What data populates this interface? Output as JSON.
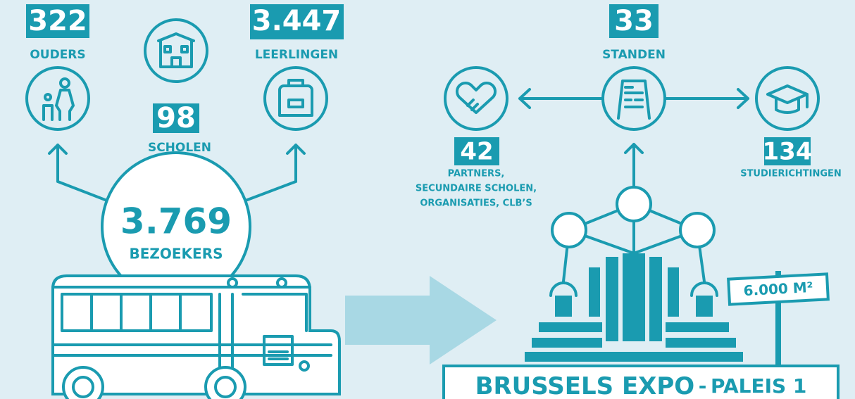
{
  "visitors": {
    "parents": {
      "number": "322",
      "label": "OUDERS"
    },
    "schools": {
      "number": "98",
      "label": "SCHOLEN"
    },
    "pupils": {
      "number": "3.447",
      "label": "LEERLINGEN"
    },
    "total": {
      "number": "3.769",
      "label": "BEZOEKERS"
    }
  },
  "fair": {
    "stands": {
      "number": "33",
      "label": "STANDEN"
    },
    "partners": {
      "number": "42",
      "label_lines": [
        "PARTNERS,",
        "SECUNDAIRE SCHOLEN,",
        "ORGANISATIES, CLB’S"
      ]
    },
    "studies": {
      "number": "134",
      "label": "STUDIERICHTINGEN"
    }
  },
  "area_sign": "6.000 M²",
  "venue": {
    "name": "BRUSSELS EXPO",
    "separator": "-",
    "hall": "PALEIS 1"
  }
}
